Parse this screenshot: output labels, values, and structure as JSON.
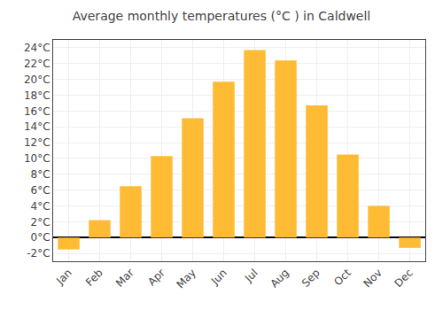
{
  "chart_data": {
    "type": "bar",
    "title": "Average monthly temperatures (°C ) in Caldwell",
    "categories": [
      "Jan",
      "Feb",
      "Mar",
      "Apr",
      "May",
      "Jun",
      "Jul",
      "Aug",
      "Sep",
      "Oct",
      "Nov",
      "Dec"
    ],
    "values": [
      -1.5,
      2.2,
      6.5,
      10.3,
      15.1,
      19.7,
      23.7,
      22.4,
      16.7,
      10.5,
      4.0,
      -1.3
    ],
    "color": "#FFBB33",
    "ylim": [
      -3,
      25
    ],
    "yticks": [
      {
        "value": -2,
        "label": "-2°C"
      },
      {
        "value": 0,
        "label": "0°C"
      },
      {
        "value": 2,
        "label": "2°C"
      },
      {
        "value": 4,
        "label": "4°C"
      },
      {
        "value": 6,
        "label": "6°C"
      },
      {
        "value": 8,
        "label": "8°C"
      },
      {
        "value": 10,
        "label": "10°C"
      },
      {
        "value": 12,
        "label": "12°C"
      },
      {
        "value": 14,
        "label": "14°C"
      },
      {
        "value": 16,
        "label": "16°C"
      },
      {
        "value": 18,
        "label": "18°C"
      },
      {
        "value": 20,
        "label": "20°C"
      },
      {
        "value": 22,
        "label": "22°C"
      },
      {
        "value": 24,
        "label": "24°C"
      }
    ],
    "grid": true
  }
}
